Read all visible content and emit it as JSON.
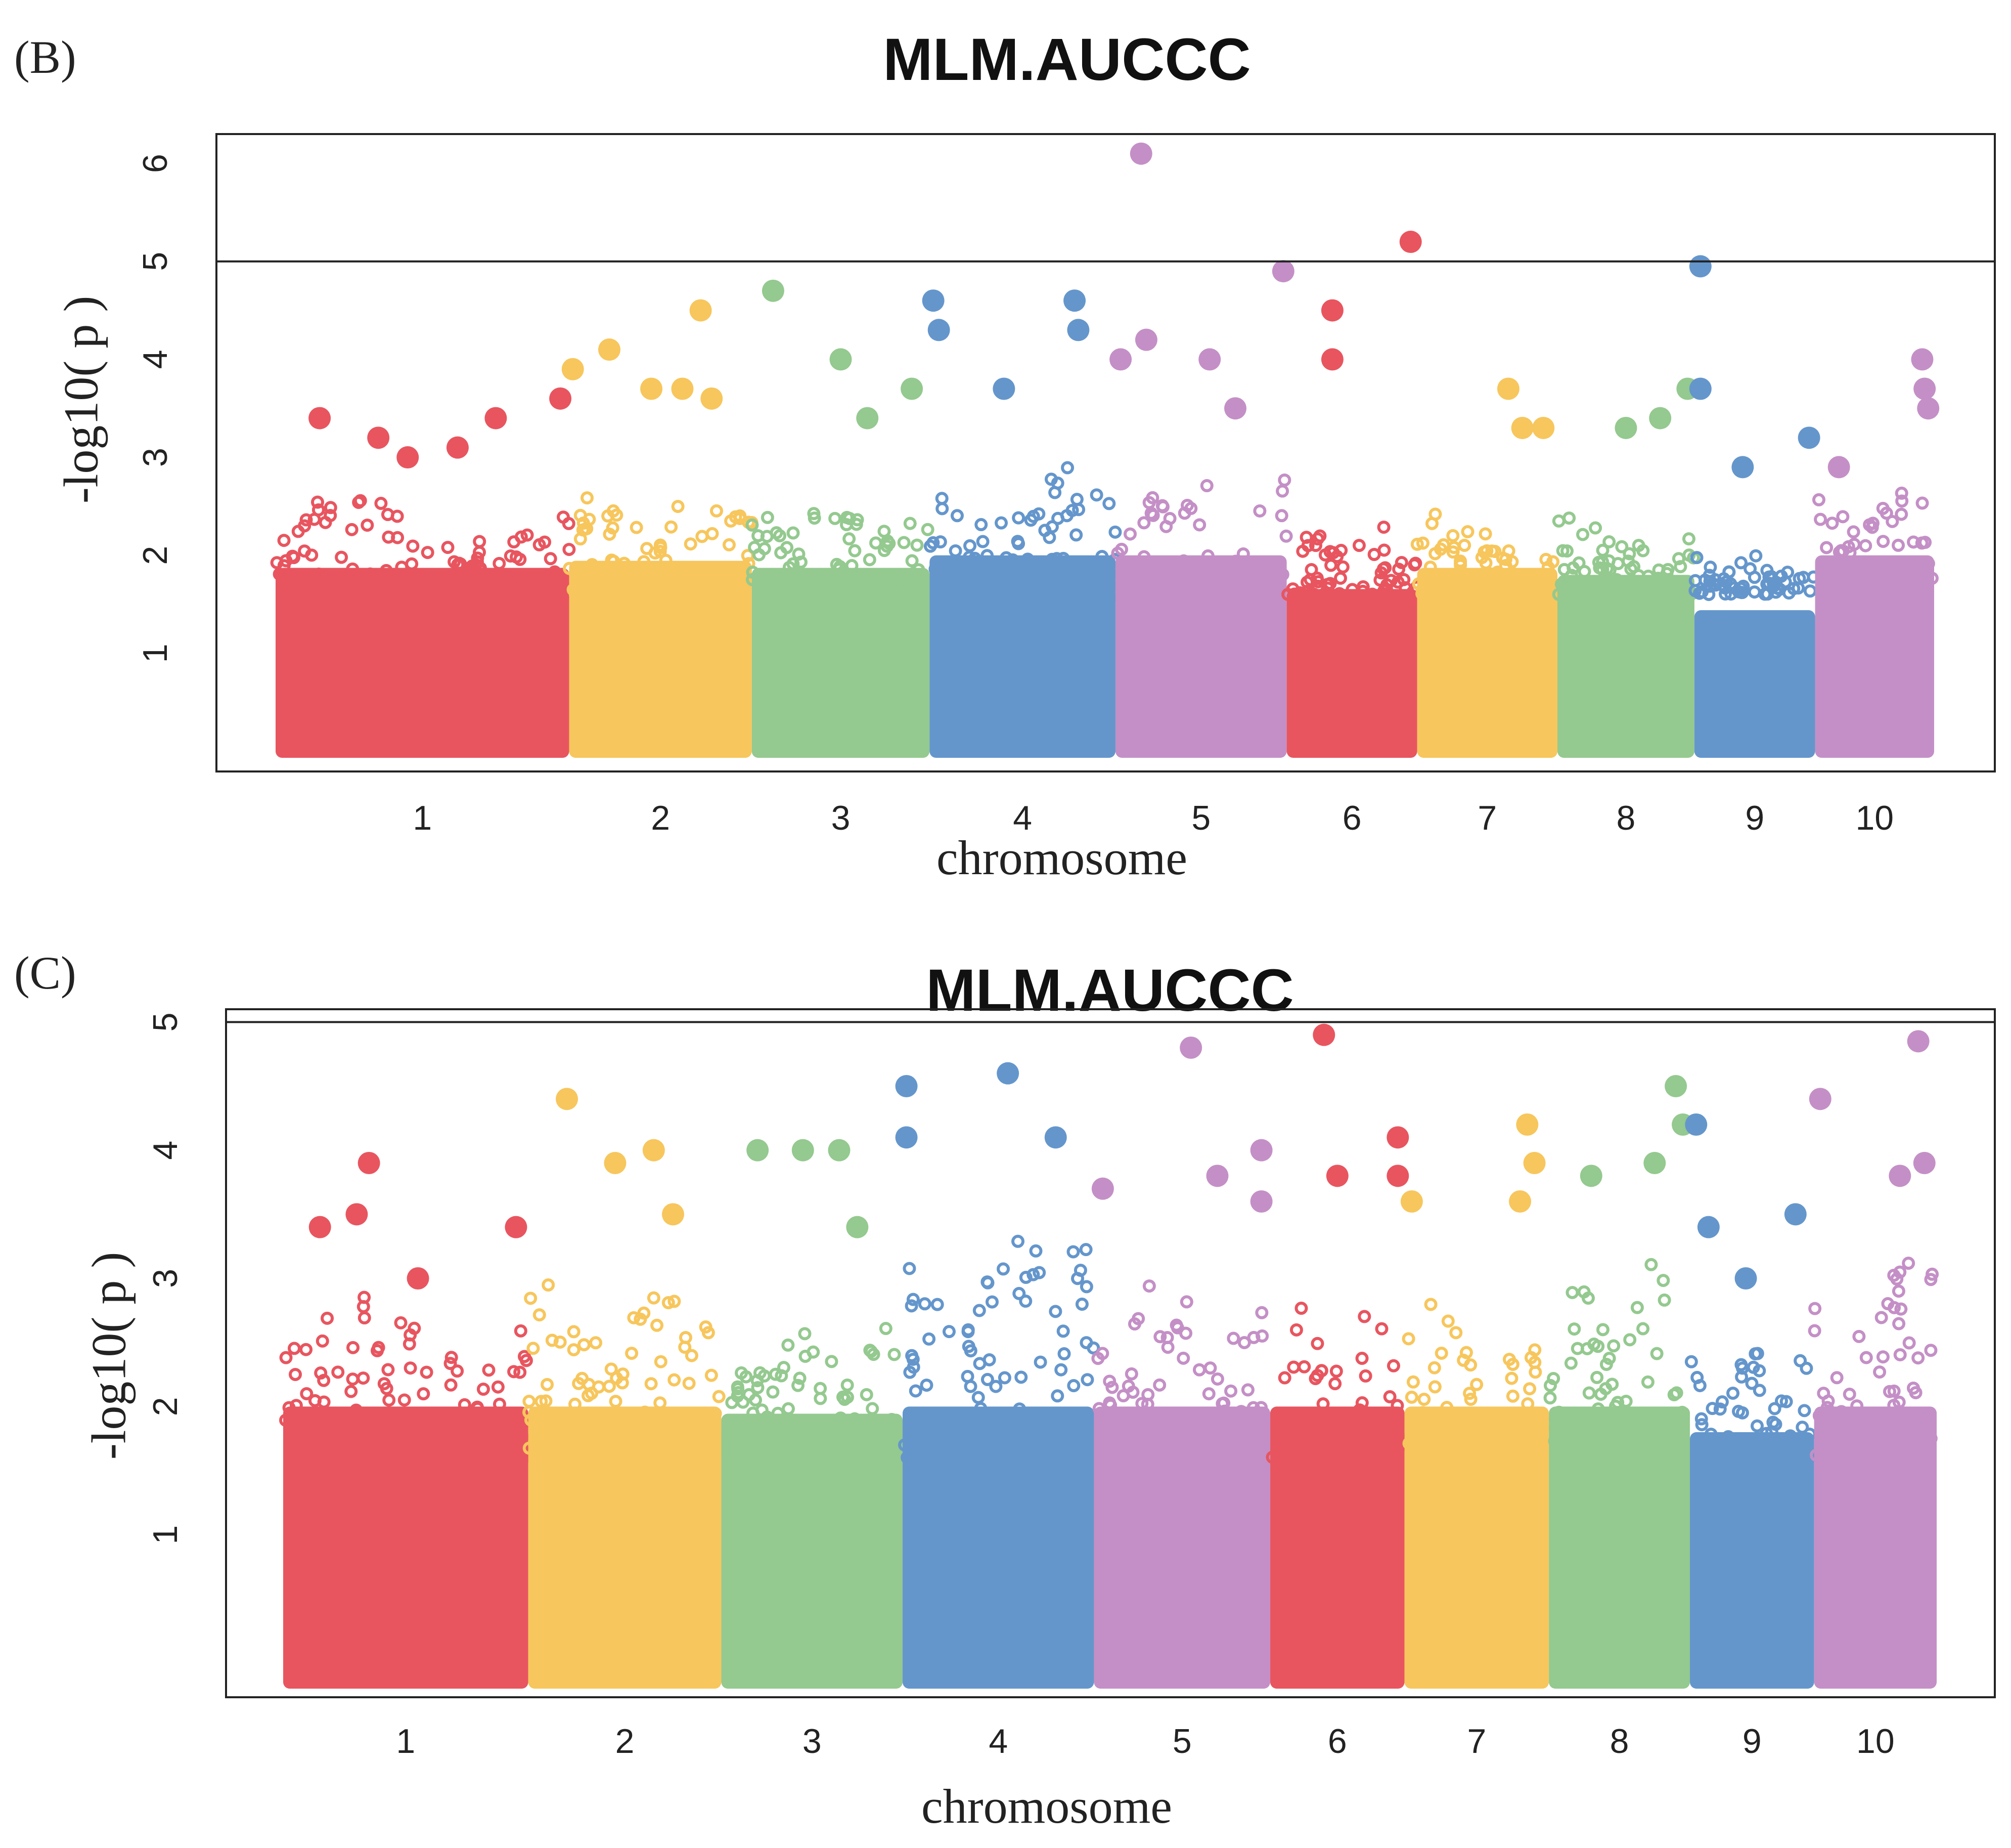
{
  "colors": {
    "chromosome_cycle": [
      "#e8555f",
      "#f7c65c",
      "#94c98f",
      "#6496cc",
      "#c48fc6"
    ],
    "frame": "#222222",
    "threshold_line": "#222222"
  },
  "panels": [
    {
      "tag": "(B)",
      "title": "MLM.AUCCC",
      "ylabel": "-log10( p )",
      "xlabel": "chromosome"
    },
    {
      "tag": "(C)",
      "title": "MLM.AUCCC",
      "ylabel": "-log10( p )",
      "xlabel": "chromosome"
    }
  ],
  "chart_data": [
    {
      "type": "scatter",
      "title": "MLM.AUCCC",
      "xlabel": "chromosome",
      "ylabel": "-log10( p )",
      "categories": [
        "1",
        "2",
        "3",
        "4",
        "5",
        "6",
        "7",
        "8",
        "9",
        "10"
      ],
      "yticks": [
        1,
        2,
        3,
        4,
        5,
        6
      ],
      "ylim": [
        0,
        6.3
      ],
      "threshold": 5,
      "grid": false,
      "legend": "none",
      "series": [
        {
          "chromosome": "1",
          "bulk_max": 2.6,
          "peaks": [
            [
              0.15,
              3.4
            ],
            [
              0.35,
              3.2
            ],
            [
              0.45,
              3.0
            ],
            [
              0.62,
              3.1
            ],
            [
              0.75,
              3.4
            ],
            [
              0.97,
              3.6
            ]
          ]
        },
        {
          "chromosome": "2",
          "bulk_max": 2.7,
          "peaks": [
            [
              0.02,
              3.9
            ],
            [
              0.22,
              4.1
            ],
            [
              0.45,
              3.7
            ],
            [
              0.62,
              3.7
            ],
            [
              0.72,
              4.5
            ],
            [
              0.78,
              3.6
            ]
          ]
        },
        {
          "chromosome": "3",
          "bulk_max": 2.6,
          "peaks": [
            [
              0.12,
              4.7
            ],
            [
              0.5,
              4.0
            ],
            [
              0.65,
              3.4
            ],
            [
              0.9,
              3.7
            ]
          ]
        },
        {
          "chromosome": "4",
          "bulk_max": 2.9,
          "peaks": [
            [
              0.02,
              4.6
            ],
            [
              0.05,
              4.3
            ],
            [
              0.4,
              3.7
            ],
            [
              0.78,
              4.6
            ],
            [
              0.8,
              4.3
            ]
          ]
        },
        {
          "chromosome": "5",
          "bulk_max": 2.9,
          "peaks": [
            [
              0.03,
              4.0
            ],
            [
              0.15,
              6.1
            ],
            [
              0.18,
              4.2
            ],
            [
              0.55,
              4.0
            ],
            [
              0.7,
              3.5
            ],
            [
              0.98,
              4.9
            ]
          ]
        },
        {
          "chromosome": "6",
          "bulk_max": 2.3,
          "peaks": [
            [
              0.35,
              4.5
            ],
            [
              0.35,
              4.0
            ],
            [
              0.95,
              5.2
            ]
          ]
        },
        {
          "chromosome": "7",
          "bulk_max": 2.6,
          "peaks": [
            [
              0.65,
              3.7
            ],
            [
              0.75,
              3.3
            ],
            [
              0.9,
              3.3
            ]
          ]
        },
        {
          "chromosome": "8",
          "bulk_max": 2.5,
          "peaks": [
            [
              0.5,
              3.3
            ],
            [
              0.75,
              3.4
            ],
            [
              0.95,
              3.7
            ]
          ]
        },
        {
          "chromosome": "9",
          "bulk_max": 2.0,
          "peaks": [
            [
              0.05,
              4.95
            ],
            [
              0.05,
              3.7
            ],
            [
              0.4,
              2.9
            ],
            [
              0.95,
              3.2
            ]
          ]
        },
        {
          "chromosome": "10",
          "bulk_max": 2.8,
          "peaks": [
            [
              0.2,
              2.9
            ],
            [
              0.9,
              4.0
            ],
            [
              0.92,
              3.7
            ],
            [
              0.95,
              3.5
            ]
          ]
        }
      ]
    },
    {
      "type": "scatter",
      "title": "MLM.AUCCC",
      "xlabel": "chromosome",
      "ylabel": "-log10( p )",
      "categories": [
        "1",
        "2",
        "3",
        "4",
        "5",
        "6",
        "7",
        "8",
        "9",
        "10"
      ],
      "yticks": [
        1,
        2,
        3,
        4,
        5
      ],
      "ylim": [
        -0.15,
        5.1
      ],
      "threshold": 5,
      "grid": false,
      "legend": "none",
      "series": [
        {
          "chromosome": "1",
          "bulk_max": 2.9,
          "peaks": [
            [
              0.15,
              3.4
            ],
            [
              0.35,
              3.9
            ],
            [
              0.3,
              3.5
            ],
            [
              0.55,
              3.0
            ],
            [
              0.95,
              3.4
            ]
          ]
        },
        {
          "chromosome": "2",
          "bulk_max": 3.0,
          "peaks": [
            [
              0.2,
              4.4
            ],
            [
              0.45,
              3.9
            ],
            [
              0.65,
              4.0
            ],
            [
              0.75,
              3.5
            ]
          ]
        },
        {
          "chromosome": "3",
          "bulk_max": 2.7,
          "peaks": [
            [
              0.2,
              4.0
            ],
            [
              0.45,
              4.0
            ],
            [
              0.65,
              4.0
            ],
            [
              0.75,
              3.4
            ]
          ]
        },
        {
          "chromosome": "4",
          "bulk_max": 3.6,
          "peaks": [
            [
              0.02,
              4.5
            ],
            [
              0.02,
              4.1
            ],
            [
              0.55,
              4.6
            ],
            [
              0.8,
              4.1
            ]
          ]
        },
        {
          "chromosome": "5",
          "bulk_max": 3.1,
          "peaks": [
            [
              0.05,
              3.7
            ],
            [
              0.55,
              4.8
            ],
            [
              0.95,
              4.0
            ],
            [
              0.7,
              3.8
            ],
            [
              0.95,
              3.6
            ]
          ]
        },
        {
          "chromosome": "6",
          "bulk_max": 2.8,
          "peaks": [
            [
              0.4,
              4.9
            ],
            [
              0.5,
              3.8
            ],
            [
              0.95,
              4.1
            ],
            [
              0.95,
              3.8
            ]
          ]
        },
        {
          "chromosome": "7",
          "bulk_max": 2.9,
          "peaks": [
            [
              0.05,
              3.6
            ],
            [
              0.85,
              4.2
            ],
            [
              0.9,
              3.9
            ],
            [
              0.8,
              3.6
            ]
          ]
        },
        {
          "chromosome": "8",
          "bulk_max": 3.2,
          "peaks": [
            [
              0.3,
              3.8
            ],
            [
              0.75,
              3.9
            ],
            [
              0.9,
              4.5
            ],
            [
              0.95,
              4.2
            ]
          ]
        },
        {
          "chromosome": "9",
          "bulk_max": 2.5,
          "peaks": [
            [
              0.05,
              4.2
            ],
            [
              0.15,
              3.4
            ],
            [
              0.45,
              3.0
            ],
            [
              0.85,
              3.5
            ]
          ]
        },
        {
          "chromosome": "10",
          "bulk_max": 3.2,
          "peaks": [
            [
              0.05,
              4.4
            ],
            [
              0.7,
              3.8
            ],
            [
              0.85,
              4.85
            ],
            [
              0.9,
              3.9
            ]
          ]
        }
      ]
    }
  ]
}
